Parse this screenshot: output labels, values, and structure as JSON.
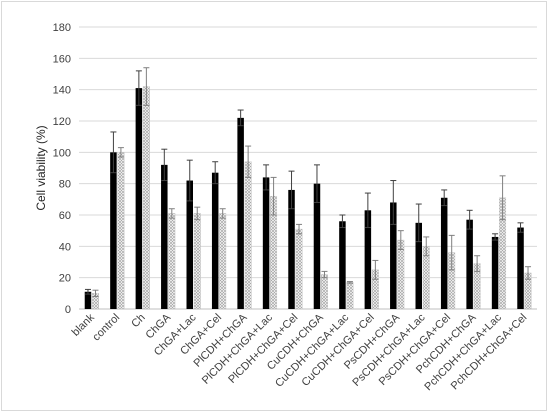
{
  "chart_data": {
    "type": "bar",
    "title": "",
    "xlabel": "",
    "ylabel": "Cell viability (%)",
    "ylim": [
      0,
      180
    ],
    "y_ticks": [
      "0",
      "20",
      "40",
      "60",
      "80",
      "100",
      "120",
      "140",
      "160",
      "180"
    ],
    "grid": true,
    "legend": "none",
    "categories": [
      "blank",
      "control",
      "Ch",
      "ChGA",
      "ChGA+Lac",
      "ChGA+Cel",
      "PlCDH+ChGA",
      "PlCDH+ChGA+Lac",
      "PlCDH+ChGA+Cel",
      "CuCDH+ChGA",
      "CuCDH+ChGA+Lac",
      "CuCDH+ChGA+Cel",
      "PsCDH+ChGA",
      "PsCDH+ChGA+Lac",
      "PsCDH+ChGA+Cel",
      "PchCDH+ChGA",
      "PchCDH+ChGA+Lac",
      "PchCDH+ChGA+Cel"
    ],
    "series": [
      {
        "pattern": "solid",
        "color": "#000000",
        "values": [
          11,
          100,
          141,
          92,
          82,
          87,
          122,
          84,
          76,
          80,
          56,
          63,
          68,
          55,
          71,
          57,
          46,
          52
        ],
        "errors": [
          1.5,
          13,
          11,
          10,
          13,
          7,
          5,
          8,
          12,
          12,
          4,
          11,
          14,
          12,
          5,
          6,
          2,
          3
        ]
      },
      {
        "pattern": "hatched",
        "color": "#bfbfbf",
        "values": [
          10,
          100,
          142,
          61,
          61,
          61,
          94,
          72,
          51,
          22,
          17,
          25,
          44,
          40,
          36,
          29,
          71,
          23
        ],
        "errors": [
          2,
          3,
          12,
          3,
          4,
          3,
          10,
          12,
          3,
          2,
          0.5,
          6,
          6,
          6,
          11,
          5,
          14,
          4
        ]
      }
    ]
  }
}
